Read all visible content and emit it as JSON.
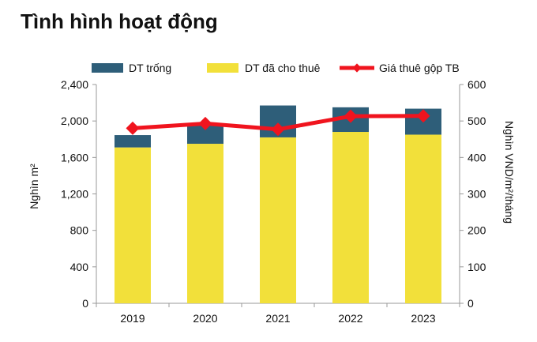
{
  "page": {
    "title": "Tình hình hoạt động"
  },
  "colors": {
    "vacant": "#2E5E79",
    "leased": "#F2E03A",
    "rent": "#F0141E",
    "axis": "#999999"
  },
  "chart_data": {
    "type": "bar",
    "stacked": true,
    "categories": [
      "2019",
      "2020",
      "2021",
      "2022",
      "2023"
    ],
    "series": [
      {
        "name": "DT đã cho thuê",
        "values": [
          1710,
          1750,
          1820,
          1880,
          1850
        ],
        "axis": "left"
      },
      {
        "name": "DT trống",
        "values": [
          135,
          225,
          350,
          270,
          285
        ],
        "axis": "left"
      },
      {
        "name": "Giá thuê gộp TB",
        "type": "line",
        "values": [
          480,
          493,
          477,
          513,
          514
        ],
        "axis": "right"
      }
    ],
    "legend": {
      "position": "top",
      "entries": [
        "DT trống",
        "DT đã cho thuê",
        "Giá thuê gộp TB"
      ]
    },
    "y_left": {
      "label": "Nghìn m²",
      "range": [
        0,
        2400
      ],
      "ticks": [
        "0",
        "400",
        "800",
        "1,200",
        "1,600",
        "2,000",
        "2,400"
      ]
    },
    "y_right": {
      "label": "Nghìn VND/m²/tháng",
      "range": [
        0,
        600
      ],
      "ticks": [
        "0",
        "100",
        "200",
        "300",
        "400",
        "500",
        "600"
      ]
    },
    "grid": false
  }
}
